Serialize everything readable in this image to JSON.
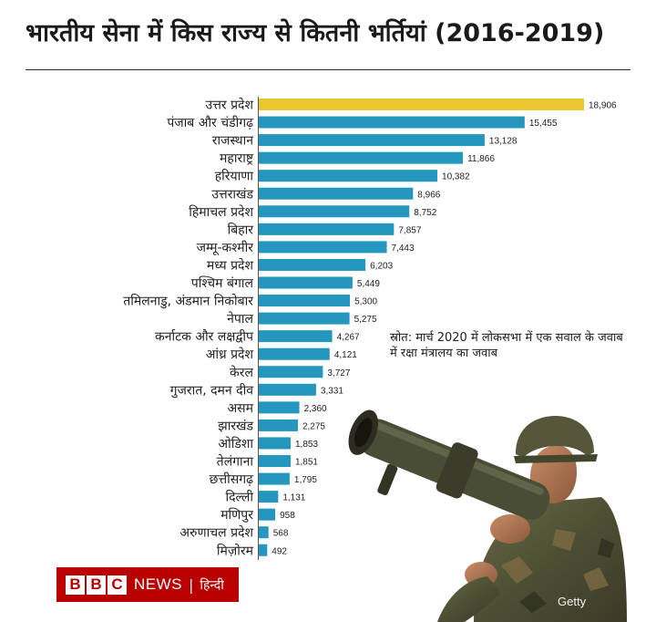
{
  "title": "भारतीय सेना में किस राज्य से कितनी भर्तियां (2016-2019)",
  "source_note": "स्रोत: मार्च 2020 में लोकसभा में एक सवाल के जवाब में रक्षा मंत्रालय का जवाब",
  "logo": {
    "blocks": [
      "B",
      "B",
      "C"
    ],
    "news": "NEWS",
    "separator": "|",
    "language": "हिन्दी"
  },
  "photo_credit": "Getty",
  "colors": {
    "highlight": "#ecc631",
    "bar": "#2596be",
    "text": "#222222"
  },
  "chart_data": {
    "type": "bar",
    "orientation": "horizontal",
    "categories": [
      "उत्तर प्रदेश",
      "पंजाब और चंडीगढ़",
      "राजस्थान",
      "महाराष्ट्र",
      "हरियाणा",
      "उत्तराखंड",
      "हिमाचल प्रदेश",
      "बिहार",
      "जम्मू-कश्मीर",
      "मध्य प्रदेश",
      "पश्चिम बंगाल",
      "तमिलनाडु, अंडमान निकोबार",
      "नेपाल",
      "कर्नाटक और लक्षद्वीप",
      "आंध्र प्रदेश",
      "केरल",
      "गुजरात, दमन दीव",
      "असम",
      "झारखंड",
      "ओडिशा",
      "तेलंगाना",
      "छत्तीसगढ़",
      "दिल्ली",
      "मणिपुर",
      "अरुणाचल प्रदेश",
      "मिज़ोरम"
    ],
    "values": [
      18906,
      15455,
      13128,
      11866,
      10382,
      8966,
      8752,
      7857,
      7443,
      6203,
      5449,
      5300,
      5275,
      4267,
      4121,
      3727,
      3331,
      2360,
      2275,
      1853,
      1851,
      1795,
      1131,
      958,
      568,
      492
    ],
    "value_labels": [
      "18,906",
      "15,455",
      "13,128",
      "11,866",
      "10,382",
      "8,966",
      "8,752",
      "7,857",
      "7,443",
      "6,203",
      "5,449",
      "5,300",
      "5,275",
      "4,267",
      "4,121",
      "3,727",
      "3,331",
      "2,360",
      "2,275",
      "1,853",
      "1,851",
      "1,795",
      "1,131",
      "958",
      "568",
      "492"
    ],
    "highlight_index": 0,
    "xlim": [
      0,
      18906
    ],
    "grid": false,
    "legend": "none"
  }
}
